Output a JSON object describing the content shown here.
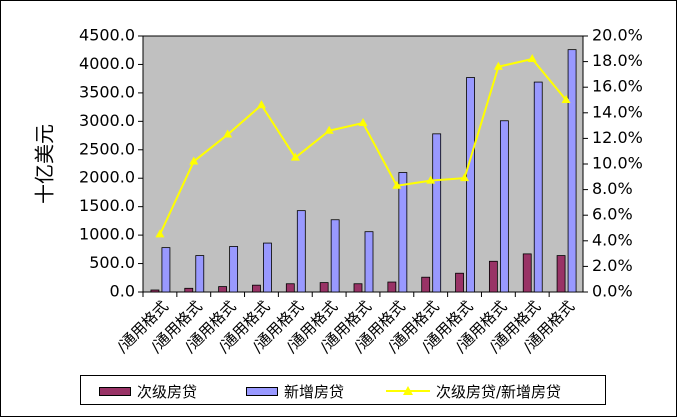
{
  "chart_data": {
    "type": "bar",
    "categories": [
      "/通用格式",
      "/通用格式",
      "/通用格式",
      "/通用格式",
      "/通用格式",
      "/通用格式",
      "/通用格式",
      "/通用格式",
      "/通用格式",
      "/通用格式",
      "/通用格式",
      "/通用格式",
      "/通用格式"
    ],
    "series": [
      {
        "name": "次级房贷",
        "kind": "bar",
        "axis": "left",
        "color": "#993366",
        "values": [
          35,
          65,
          95,
          120,
          145,
          165,
          145,
          175,
          260,
          330,
          540,
          670,
          640
        ]
      },
      {
        "name": "新增房贷",
        "kind": "bar",
        "axis": "left",
        "color": "#9999ff",
        "values": [
          780,
          640,
          800,
          860,
          1430,
          1270,
          1060,
          2100,
          2780,
          3770,
          3010,
          3690,
          4260
        ]
      },
      {
        "name": "次级房贷/新增房贷",
        "kind": "line",
        "axis": "right",
        "color": "#ffff00",
        "values": [
          4.5,
          10.2,
          12.3,
          14.6,
          10.5,
          12.6,
          13.2,
          8.3,
          8.7,
          8.9,
          17.6,
          18.2,
          15.0
        ]
      }
    ],
    "ylabel": "十亿美元",
    "ylim": [
      0,
      4500
    ],
    "y_ticks": [
      "0.0",
      "500.0",
      "1000.0",
      "1500.0",
      "2000.0",
      "2500.0",
      "3000.0",
      "3500.0",
      "4000.0",
      "4500.0"
    ],
    "y2lim": [
      0,
      20
    ],
    "y2_ticks": [
      "0.0%",
      "2.0%",
      "4.0%",
      "6.0%",
      "8.0%",
      "10.0%",
      "12.0%",
      "14.0%",
      "16.0%",
      "18.0%",
      "20.0%"
    ],
    "plot_background": "#c0c0c0",
    "grid": false,
    "legend_position": "bottom"
  },
  "legend": {
    "items": [
      {
        "label": "次级房贷",
        "kind": "bar",
        "color": "#993366"
      },
      {
        "label": "新增房贷",
        "kind": "bar",
        "color": "#9999ff"
      },
      {
        "label": "次级房贷/新增房贷",
        "kind": "line",
        "color": "#ffff00"
      }
    ]
  }
}
